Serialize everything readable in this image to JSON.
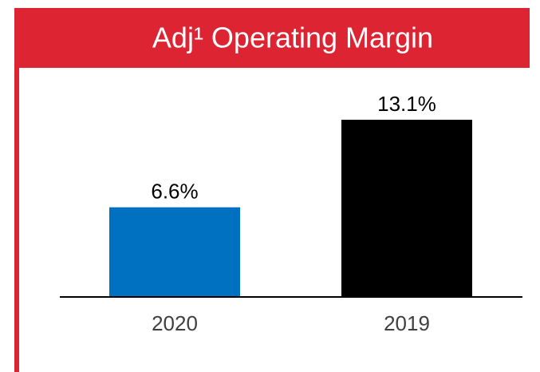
{
  "chart_data": {
    "type": "bar",
    "title": "Adj¹ Operating Margin",
    "categories": [
      "2020",
      "2019"
    ],
    "values": [
      6.6,
      13.1
    ],
    "value_labels": [
      "6.6%",
      "13.1%"
    ],
    "colors": [
      "#0070c0",
      "#000000"
    ]
  }
}
